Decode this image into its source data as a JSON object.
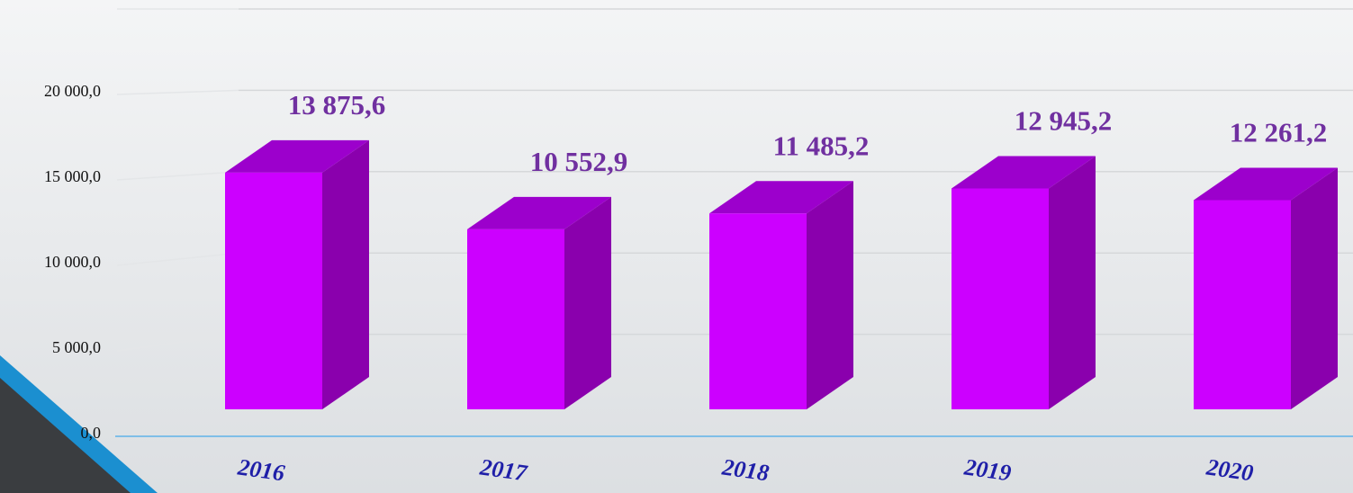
{
  "chart_data": {
    "type": "bar3d",
    "categories": [
      "2016",
      "2017",
      "2018",
      "2019",
      "2020"
    ],
    "values": [
      13875.6,
      10552.9,
      11485.2,
      12945.2,
      12261.2
    ],
    "value_labels": [
      "13 875,6",
      "10 552,9",
      "11 485,2",
      "12 945,2",
      "12 261,2"
    ],
    "color": "#cc00ff",
    "ylim": [
      0,
      25000
    ],
    "yticks": [
      {
        "value": 0,
        "label": "0,0"
      },
      {
        "value": 5000,
        "label": "5 000,0"
      },
      {
        "value": 10000,
        "label": "10 000,0"
      },
      {
        "value": 15000,
        "label": "15 000,0"
      },
      {
        "value": 20000,
        "label": "20 000,0"
      }
    ],
    "grid": true
  }
}
